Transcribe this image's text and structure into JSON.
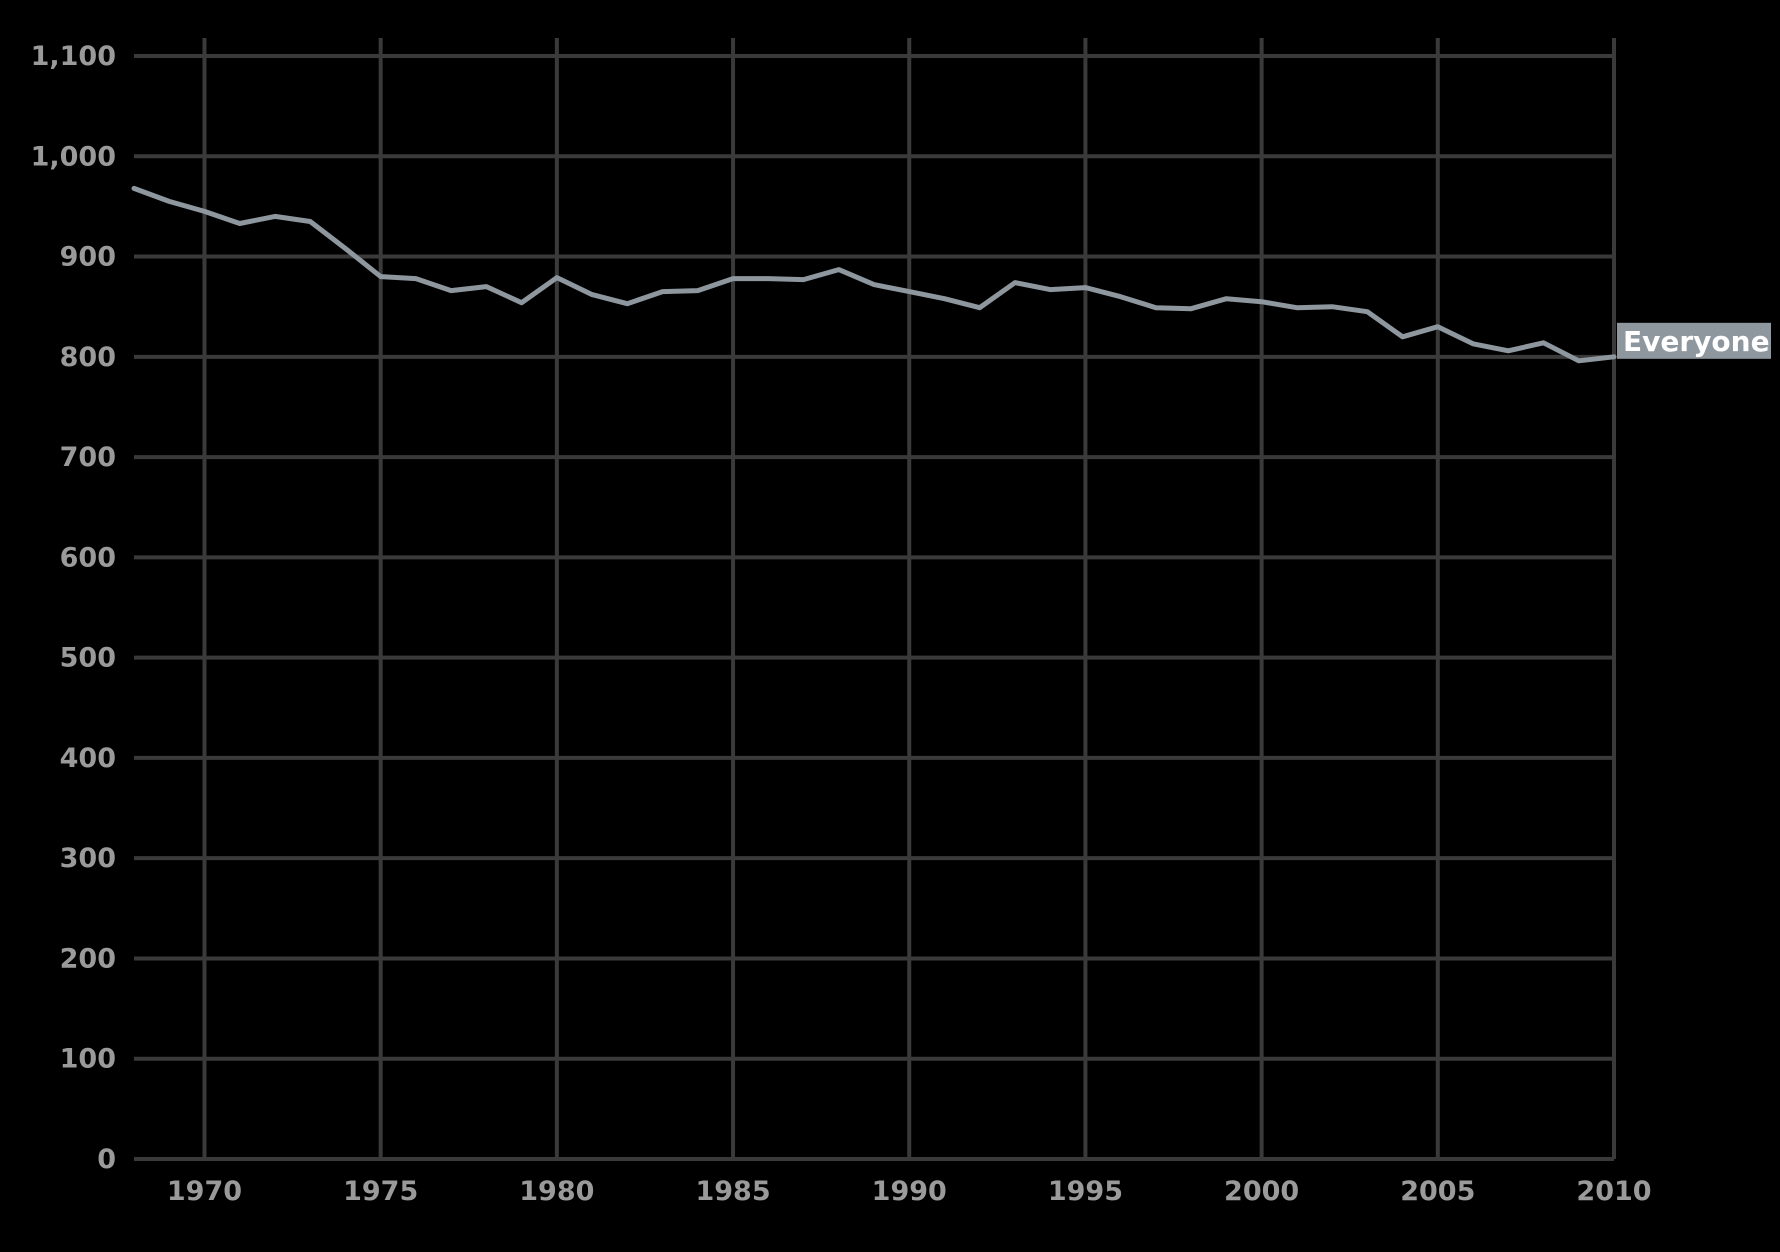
{
  "chart_data": {
    "type": "line",
    "title": "",
    "xlabel": "",
    "ylabel": "",
    "xlim": [
      1968,
      2010
    ],
    "ylim": [
      0,
      1100
    ],
    "x_ticks": [
      1970,
      1975,
      1980,
      1985,
      1990,
      1995,
      2000,
      2005,
      2010
    ],
    "y_ticks": [
      0,
      100,
      200,
      300,
      400,
      500,
      600,
      700,
      800,
      900,
      1000,
      1100
    ],
    "y_tick_labels": [
      "0",
      "100",
      "200",
      "300",
      "400",
      "500",
      "600",
      "700",
      "800",
      "900",
      "1,000",
      "1,100"
    ],
    "grid": true,
    "series": [
      {
        "name": "Everyone",
        "color": "#8e969e",
        "x": [
          1968,
          1969,
          1970,
          1971,
          1972,
          1973,
          1974,
          1975,
          1976,
          1977,
          1978,
          1979,
          1980,
          1981,
          1982,
          1983,
          1984,
          1985,
          1986,
          1987,
          1988,
          1989,
          1990,
          1991,
          1992,
          1993,
          1994,
          1995,
          1996,
          1997,
          1998,
          1999,
          2000,
          2001,
          2002,
          2003,
          2004,
          2005,
          2006,
          2007,
          2008,
          2009,
          2010
        ],
        "values": [
          968,
          955,
          945,
          933,
          940,
          935,
          908,
          880,
          878,
          866,
          870,
          854,
          879,
          862,
          853,
          865,
          866,
          878,
          878,
          877,
          887,
          872,
          865,
          858,
          849,
          874,
          867,
          869,
          860,
          849,
          848,
          858,
          855,
          849,
          850,
          845,
          820,
          830,
          813,
          806,
          814,
          796,
          800
        ]
      }
    ]
  },
  "colors": {
    "background": "#000000",
    "grid": "#3a3a3a",
    "tick_label": "#9a9a9a",
    "series_label_bg": "#8e969e",
    "series_label_text": "#ffffff"
  }
}
